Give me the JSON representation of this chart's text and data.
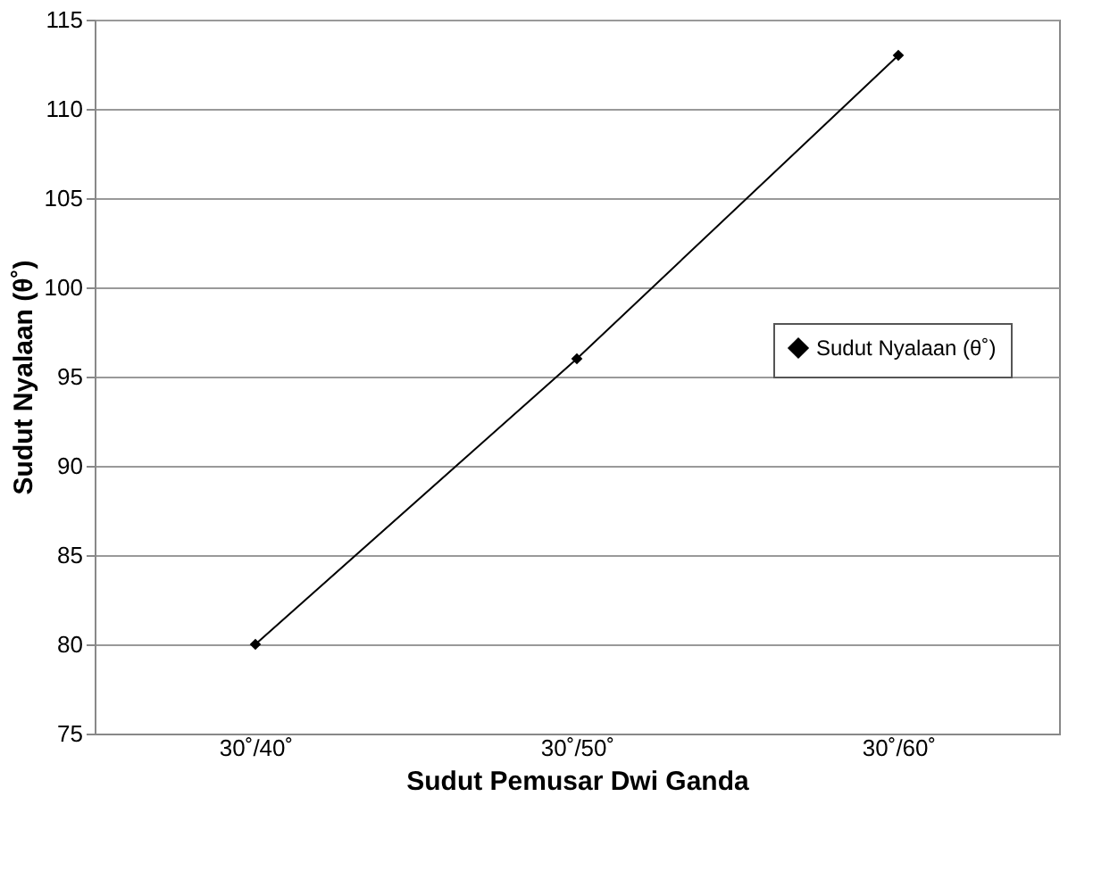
{
  "chart_data": {
    "type": "line",
    "xlabel": "Sudut Pemusar Dwi Ganda",
    "ylabel": "Sudut Nyalaan (θ˚)",
    "categories": [
      "30˚/40˚",
      "30˚/50˚",
      "30˚/60˚"
    ],
    "series": [
      {
        "name": "Sudut Nyalaan (θ˚)",
        "color": "#000000",
        "values": [
          80,
          96,
          113
        ]
      }
    ],
    "ylim": [
      75,
      115
    ],
    "yticks": [
      75,
      80,
      85,
      90,
      95,
      100,
      105,
      110,
      115
    ],
    "grid": "y",
    "legend": "right",
    "marker": "diamond",
    "line_style": "solid"
  }
}
